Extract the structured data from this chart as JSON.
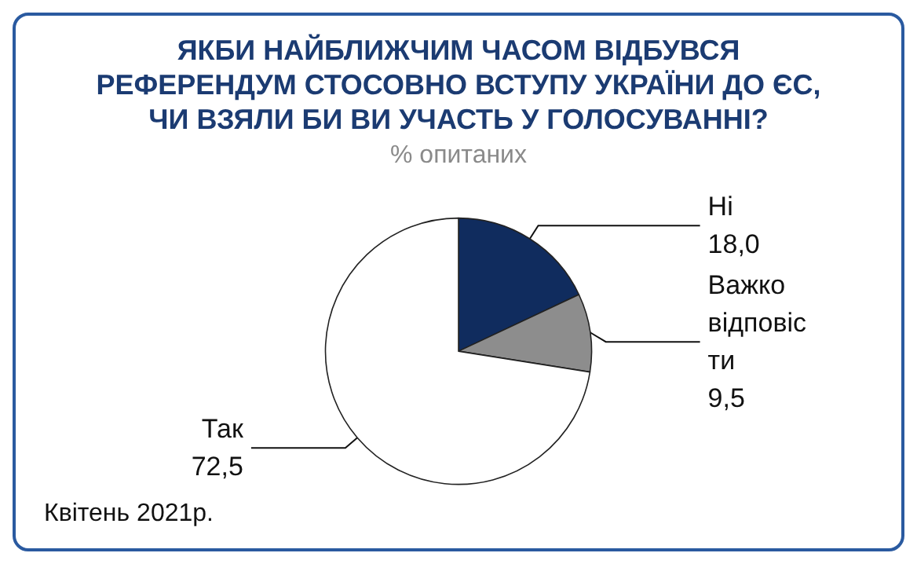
{
  "chart_data": {
    "type": "pie",
    "title": "ЯКБИ НАЙБЛИЖЧИМ ЧАСОМ ВІДБУВСЯ\nРЕФЕРЕНДУМ СТОСОВНО ВСТУПУ УКРАЇНИ ДО ЄС,\nЧИ ВЗЯЛИ БИ ВИ УЧАСТЬ У ГОЛОСУВАННІ?",
    "subtitle": "% опитаних",
    "categories": [
      "Ні",
      "Важко відповісти",
      "Так"
    ],
    "values": [
      18.0,
      9.5,
      72.5
    ],
    "value_labels": [
      "18,0",
      "9,5",
      "72,5"
    ],
    "colors": [
      "#102c5e",
      "#8d8d8d",
      "#ffffff"
    ],
    "annotations": [
      "Квітень 2021р."
    ]
  }
}
